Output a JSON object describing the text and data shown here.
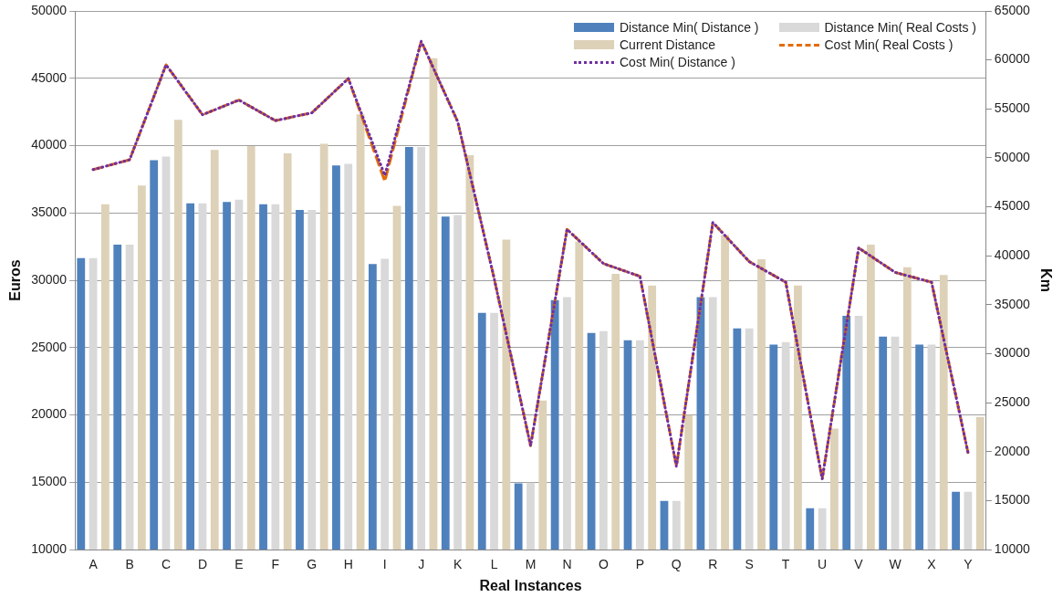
{
  "chart_data": {
    "type": "bar",
    "xlabel": "Real Instances",
    "ylabel": "Euros",
    "y2label": "Km",
    "categories": [
      "A",
      "B",
      "C",
      "D",
      "E",
      "F",
      "G",
      "H",
      "I",
      "J",
      "K",
      "L",
      "M",
      "N",
      "O",
      "P",
      "Q",
      "R",
      "S",
      "T",
      "U",
      "V",
      "W",
      "X",
      "Y"
    ],
    "ylim": [
      10000,
      50000
    ],
    "yticks": [
      10000,
      15000,
      20000,
      25000,
      30000,
      35000,
      40000,
      45000,
      50000
    ],
    "y2lim": [
      10000,
      65000
    ],
    "y2ticks": [
      10000,
      15000,
      20000,
      25000,
      30000,
      35000,
      40000,
      45000,
      50000,
      55000,
      60000,
      65000
    ],
    "grid": "y",
    "legend": "top right",
    "marker": "none",
    "series": [
      {
        "name": "Distance Min( Distance )",
        "color": "#4f81bd",
        "values": [
          31650,
          32640,
          38910,
          35710,
          35820,
          35650,
          35220,
          38530,
          31210,
          39890,
          34730,
          27570,
          14910,
          28520,
          26080,
          25540,
          13610,
          28740,
          26430,
          25220,
          13070,
          27360,
          25810,
          25220,
          14280
        ]
      },
      {
        "name": "Distance Min( Real Costs )",
        "color": "#d9d9d9",
        "values": [
          31650,
          32640,
          39180,
          35710,
          35980,
          35650,
          35220,
          38640,
          31590,
          39890,
          34840,
          27570,
          14970,
          28740,
          26220,
          25540,
          13610,
          28740,
          26430,
          25410,
          13070,
          27360,
          25810,
          25220,
          14280
        ]
      },
      {
        "name": "Current Distance",
        "color": "#ddd1b8",
        "values": [
          35650,
          37040,
          41920,
          39670,
          39970,
          39420,
          40130,
          42330,
          35520,
          46500,
          39290,
          33020,
          21070,
          32860,
          30470,
          29610,
          19980,
          33350,
          31560,
          29610,
          18980,
          32640,
          30960,
          30390,
          19840
        ]
      },
      {
        "name": "Cost Min( Real Costs )",
        "type": "line",
        "axis": "y2",
        "line_style": "dashed",
        "color": "#e36c09",
        "values": [
          48800,
          49800,
          59500,
          54400,
          55900,
          53800,
          54600,
          58100,
          47600,
          61900,
          53700,
          37700,
          20600,
          42700,
          39200,
          37900,
          18500,
          43400,
          39400,
          37300,
          17200,
          40800,
          38300,
          37300,
          19900
        ]
      },
      {
        "name": "Cost Min( Distance )",
        "type": "line",
        "axis": "y2",
        "line_style": "dotted",
        "color": "#7030a0",
        "values": [
          48800,
          49800,
          59500,
          54400,
          55900,
          53800,
          54600,
          58100,
          48200,
          61900,
          53700,
          37700,
          20600,
          42700,
          39200,
          37900,
          18500,
          43400,
          39400,
          37300,
          17200,
          40800,
          38300,
          37300,
          19900
        ]
      }
    ]
  }
}
